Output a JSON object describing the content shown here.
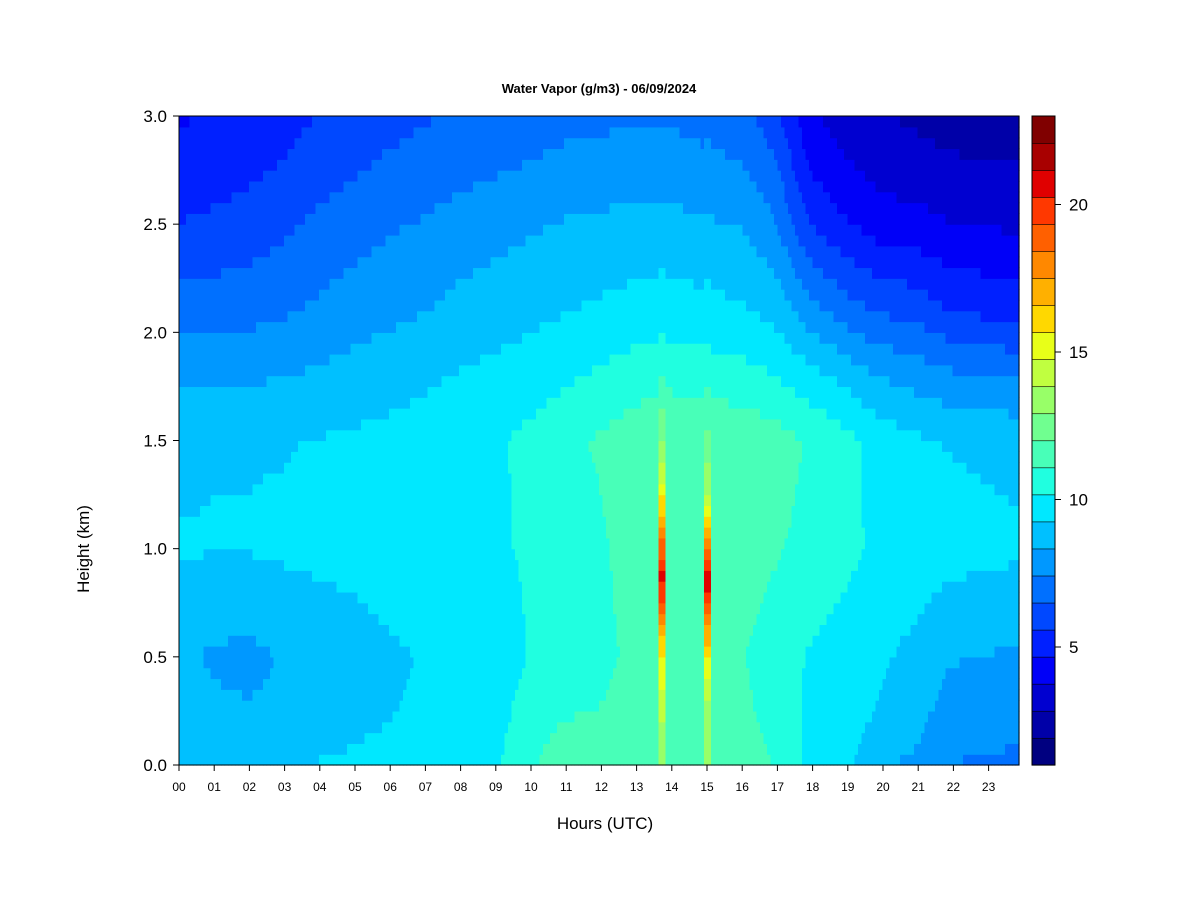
{
  "chart_data": {
    "type": "heatmap",
    "title": "Water Vapor (g/m3) - 06/09/2024",
    "xlabel": "Hours (UTC)",
    "ylabel": "Height (km)",
    "xlim": [
      0,
      24
    ],
    "ylim": [
      0,
      3.0
    ],
    "x_ticks": [
      "00",
      "01",
      "02",
      "03",
      "04",
      "05",
      "06",
      "07",
      "08",
      "09",
      "10",
      "11",
      "12",
      "13",
      "14",
      "15",
      "16",
      "17",
      "18",
      "19",
      "20",
      "21",
      "22",
      "23"
    ],
    "y_ticks": [
      "0.0",
      "0.5",
      "1.0",
      "1.5",
      "2.0",
      "2.5",
      "3.0"
    ],
    "y_tick_values": [
      0,
      0.5,
      1.0,
      1.5,
      2.0,
      2.5,
      3.0
    ],
    "colorbar": {
      "min": 1,
      "max": 23,
      "ticks": [
        "5",
        "10",
        "15",
        "20"
      ],
      "tick_values": [
        5,
        10,
        15,
        20
      ],
      "levels": 22,
      "colors": [
        "#000080",
        "#0000a8",
        "#0000d0",
        "#0000f8",
        "#0020ff",
        "#0048ff",
        "#0070ff",
        "#0098ff",
        "#00c0ff",
        "#00e8ff",
        "#20ffe0",
        "#48ffb8",
        "#70ff90",
        "#98ff68",
        "#c0ff40",
        "#e8ff18",
        "#ffd800",
        "#ffb000",
        "#ff8800",
        "#ff6000",
        "#ff3800",
        "#e00000",
        "#a80000",
        "#800000"
      ]
    },
    "columns": [
      {
        "hour": 0,
        "profile": [
          [
            0,
            8.3
          ],
          [
            0.25,
            9.0
          ],
          [
            0.5,
            8.5
          ],
          [
            1.0,
            9.3
          ],
          [
            1.5,
            9.1
          ],
          [
            1.8,
            8.2
          ],
          [
            2.1,
            7.0
          ],
          [
            2.5,
            5.6
          ],
          [
            2.8,
            4.9
          ],
          [
            3.0,
            4.6
          ]
        ]
      },
      {
        "hour": 1,
        "profile": [
          [
            0,
            9.0
          ],
          [
            0.25,
            8.5
          ],
          [
            0.5,
            8.2
          ],
          [
            1.0,
            9.3
          ],
          [
            1.5,
            9.2
          ],
          [
            1.8,
            8.1
          ],
          [
            2.1,
            7.0
          ],
          [
            2.5,
            5.8
          ],
          [
            2.8,
            5.0
          ],
          [
            3.0,
            4.7
          ]
        ]
      },
      {
        "hour": 2,
        "profile": [
          [
            0,
            9.1
          ],
          [
            0.25,
            8.4
          ],
          [
            0.5,
            8.1
          ],
          [
            1.0,
            9.3
          ],
          [
            1.5,
            9.2
          ],
          [
            1.8,
            8.2
          ],
          [
            2.1,
            7.1
          ],
          [
            2.5,
            6.0
          ],
          [
            2.8,
            5.3
          ],
          [
            3.0,
            5.0
          ]
        ]
      },
      {
        "hour": 3,
        "profile": [
          [
            0,
            9.2
          ],
          [
            0.25,
            8.5
          ],
          [
            0.5,
            8.4
          ],
          [
            1.0,
            9.4
          ],
          [
            1.5,
            9.2
          ],
          [
            1.8,
            8.3
          ],
          [
            2.1,
            7.3
          ],
          [
            2.5,
            6.3
          ],
          [
            2.8,
            5.6
          ],
          [
            3.0,
            5.3
          ]
        ]
      },
      {
        "hour": 4,
        "profile": [
          [
            0,
            9.3
          ],
          [
            0.25,
            8.8
          ],
          [
            0.5,
            8.6
          ],
          [
            1.0,
            9.5
          ],
          [
            1.5,
            9.3
          ],
          [
            1.8,
            8.5
          ],
          [
            2.1,
            7.6
          ],
          [
            2.5,
            6.7
          ],
          [
            2.8,
            6.0
          ],
          [
            3.0,
            5.6
          ]
        ]
      },
      {
        "hour": 5,
        "profile": [
          [
            0,
            9.4
          ],
          [
            0.25,
            9.0
          ],
          [
            0.5,
            8.8
          ],
          [
            1.0,
            9.6
          ],
          [
            1.5,
            9.4
          ],
          [
            1.8,
            8.7
          ],
          [
            2.1,
            7.9
          ],
          [
            2.5,
            7.0
          ],
          [
            2.8,
            6.3
          ],
          [
            3.0,
            5.9
          ]
        ]
      },
      {
        "hour": 6,
        "profile": [
          [
            0,
            9.5
          ],
          [
            0.25,
            9.2
          ],
          [
            0.5,
            9.1
          ],
          [
            1.0,
            9.7
          ],
          [
            1.5,
            9.5
          ],
          [
            1.8,
            8.9
          ],
          [
            2.1,
            8.1
          ],
          [
            2.5,
            7.3
          ],
          [
            2.8,
            6.6
          ],
          [
            3.0,
            6.2
          ]
        ]
      },
      {
        "hour": 7,
        "profile": [
          [
            0,
            9.6
          ],
          [
            0.25,
            9.4
          ],
          [
            0.5,
            9.3
          ],
          [
            1.0,
            9.8
          ],
          [
            1.5,
            9.6
          ],
          [
            1.8,
            9.1
          ],
          [
            2.1,
            8.3
          ],
          [
            2.5,
            7.5
          ],
          [
            2.8,
            6.8
          ],
          [
            3.0,
            6.4
          ]
        ]
      },
      {
        "hour": 8,
        "profile": [
          [
            0,
            9.7
          ],
          [
            0.25,
            9.5
          ],
          [
            0.5,
            9.4
          ],
          [
            1.0,
            9.9
          ],
          [
            1.5,
            9.8
          ],
          [
            1.8,
            9.3
          ],
          [
            2.1,
            8.6
          ],
          [
            2.5,
            7.8
          ],
          [
            2.8,
            7.0
          ],
          [
            3.0,
            6.6
          ]
        ]
      },
      {
        "hour": 9,
        "profile": [
          [
            0,
            10.0
          ],
          [
            0.25,
            9.7
          ],
          [
            0.5,
            9.6
          ],
          [
            1.0,
            10.0
          ],
          [
            1.5,
            10.0
          ],
          [
            1.8,
            9.5
          ],
          [
            2.1,
            8.8
          ],
          [
            2.5,
            8.0
          ],
          [
            2.8,
            7.2
          ],
          [
            3.0,
            6.8
          ]
        ]
      },
      {
        "hour": 10,
        "profile": [
          [
            0,
            11.0
          ],
          [
            0.25,
            10.6
          ],
          [
            0.5,
            10.2
          ],
          [
            1.0,
            10.3
          ],
          [
            1.5,
            10.4
          ],
          [
            1.8,
            9.7
          ],
          [
            2.1,
            9.0
          ],
          [
            2.5,
            8.2
          ],
          [
            2.8,
            7.4
          ],
          [
            3.0,
            7.0
          ]
        ]
      },
      {
        "hour": 11,
        "profile": [
          [
            0,
            11.5
          ],
          [
            0.25,
            11.0
          ],
          [
            0.5,
            10.6
          ],
          [
            1.0,
            10.6
          ],
          [
            1.5,
            10.8
          ],
          [
            1.8,
            10.0
          ],
          [
            2.1,
            9.2
          ],
          [
            2.5,
            8.4
          ],
          [
            2.8,
            7.6
          ],
          [
            3.0,
            7.1
          ]
        ]
      },
      {
        "hour": 12,
        "profile": [
          [
            0,
            11.6
          ],
          [
            0.25,
            11.1
          ],
          [
            0.5,
            10.8
          ],
          [
            1.0,
            10.9
          ],
          [
            1.5,
            11.2
          ],
          [
            1.8,
            10.3
          ],
          [
            2.1,
            9.4
          ],
          [
            2.5,
            8.5
          ],
          [
            2.8,
            7.7
          ],
          [
            3.0,
            7.2
          ]
        ]
      },
      {
        "hour": 13,
        "profile": [
          [
            0,
            12.0
          ],
          [
            0.25,
            11.5
          ],
          [
            0.5,
            11.3
          ],
          [
            1.0,
            11.5
          ],
          [
            1.5,
            11.6
          ],
          [
            1.8,
            10.6
          ],
          [
            2.1,
            9.6
          ],
          [
            2.5,
            8.6
          ],
          [
            2.8,
            7.8
          ],
          [
            3.0,
            7.3
          ]
        ]
      },
      {
        "hour": 13.8,
        "profile": [
          [
            0,
            13.0
          ],
          [
            0.25,
            14.0
          ],
          [
            0.5,
            15.5
          ],
          [
            0.85,
            20.5
          ],
          [
            1.0,
            19.0
          ],
          [
            1.25,
            15.5
          ],
          [
            1.5,
            13.0
          ],
          [
            1.8,
            11.0
          ],
          [
            2.1,
            9.8
          ],
          [
            2.5,
            8.6
          ],
          [
            2.8,
            7.8
          ],
          [
            3.0,
            7.3
          ]
        ]
      },
      {
        "hour": 14,
        "profile": [
          [
            0,
            12.0
          ],
          [
            0.25,
            11.8
          ],
          [
            0.5,
            11.6
          ],
          [
            1.0,
            12.0
          ],
          [
            1.5,
            12.0
          ],
          [
            1.8,
            10.8
          ],
          [
            2.1,
            9.7
          ],
          [
            2.5,
            8.6
          ],
          [
            2.8,
            7.8
          ],
          [
            3.0,
            7.3
          ]
        ]
      },
      {
        "hour": 15.1,
        "profile": [
          [
            0,
            13.0
          ],
          [
            0.25,
            13.5
          ],
          [
            0.5,
            15.5
          ],
          [
            0.85,
            21.0
          ],
          [
            1.0,
            18.0
          ],
          [
            1.25,
            14.0
          ],
          [
            1.5,
            12.2
          ],
          [
            1.8,
            10.8
          ],
          [
            2.1,
            9.6
          ],
          [
            2.5,
            8.5
          ],
          [
            2.8,
            7.7
          ],
          [
            3.0,
            7.2
          ]
        ]
      },
      {
        "hour": 16,
        "profile": [
          [
            0,
            11.8
          ],
          [
            0.25,
            11.4
          ],
          [
            0.5,
            11.2
          ],
          [
            1.0,
            11.7
          ],
          [
            1.5,
            11.8
          ],
          [
            1.8,
            10.5
          ],
          [
            2.1,
            9.4
          ],
          [
            2.5,
            8.3
          ],
          [
            2.8,
            7.4
          ],
          [
            3.0,
            6.8
          ]
        ]
      },
      {
        "hour": 17,
        "profile": [
          [
            0,
            11.0
          ],
          [
            0.25,
            10.7
          ],
          [
            0.5,
            10.6
          ],
          [
            1.0,
            11.2
          ],
          [
            1.5,
            11.5
          ],
          [
            1.8,
            10.2
          ],
          [
            2.1,
            9.0
          ],
          [
            2.5,
            7.6
          ],
          [
            2.8,
            6.6
          ],
          [
            3.0,
            6.0
          ]
        ]
      },
      {
        "hour": 18,
        "profile": [
          [
            0,
            10.0
          ],
          [
            0.25,
            10.0
          ],
          [
            0.5,
            10.1
          ],
          [
            1.0,
            10.8
          ],
          [
            1.5,
            11.0
          ],
          [
            1.8,
            9.6
          ],
          [
            2.1,
            7.8
          ],
          [
            2.5,
            5.6
          ],
          [
            2.8,
            4.5
          ],
          [
            3.0,
            4.0
          ]
        ]
      },
      {
        "hour": 19,
        "profile": [
          [
            0,
            9.6
          ],
          [
            0.25,
            9.7
          ],
          [
            0.5,
            9.8
          ],
          [
            1.0,
            10.4
          ],
          [
            1.5,
            10.5
          ],
          [
            1.8,
            9.0
          ],
          [
            2.1,
            7.0
          ],
          [
            2.5,
            4.8
          ],
          [
            2.8,
            3.8
          ],
          [
            3.0,
            3.3
          ]
        ]
      },
      {
        "hour": 20,
        "profile": [
          [
            0,
            8.4
          ],
          [
            0.25,
            9.2
          ],
          [
            0.5,
            9.4
          ],
          [
            1.0,
            10.0
          ],
          [
            1.5,
            9.8
          ],
          [
            1.8,
            8.3
          ],
          [
            2.1,
            6.4
          ],
          [
            2.5,
            4.2
          ],
          [
            2.8,
            3.3
          ],
          [
            3.0,
            2.9
          ]
        ]
      },
      {
        "hour": 21,
        "profile": [
          [
            0,
            8.2
          ],
          [
            0.25,
            8.7
          ],
          [
            0.5,
            9.0
          ],
          [
            1.0,
            9.8
          ],
          [
            1.5,
            9.4
          ],
          [
            1.8,
            8.0
          ],
          [
            2.1,
            6.2
          ],
          [
            2.5,
            4.1
          ],
          [
            2.8,
            3.1
          ],
          [
            3.0,
            2.7
          ]
        ]
      },
      {
        "hour": 22,
        "profile": [
          [
            0,
            7.4
          ],
          [
            0.25,
            8.0
          ],
          [
            0.5,
            8.4
          ],
          [
            1.0,
            9.6
          ],
          [
            1.5,
            9.2
          ],
          [
            1.8,
            7.6
          ],
          [
            2.1,
            5.6
          ],
          [
            2.5,
            3.8
          ],
          [
            2.8,
            2.9
          ],
          [
            3.0,
            2.5
          ]
        ]
      },
      {
        "hour": 24,
        "profile": [
          [
            0,
            7.2
          ],
          [
            0.25,
            7.8
          ],
          [
            0.5,
            8.2
          ],
          [
            1.0,
            9.4
          ],
          [
            1.5,
            9.0
          ],
          [
            1.8,
            7.3
          ],
          [
            2.1,
            5.2
          ],
          [
            2.5,
            3.6
          ],
          [
            2.8,
            2.8
          ],
          [
            3.0,
            2.4
          ]
        ]
      }
    ]
  }
}
